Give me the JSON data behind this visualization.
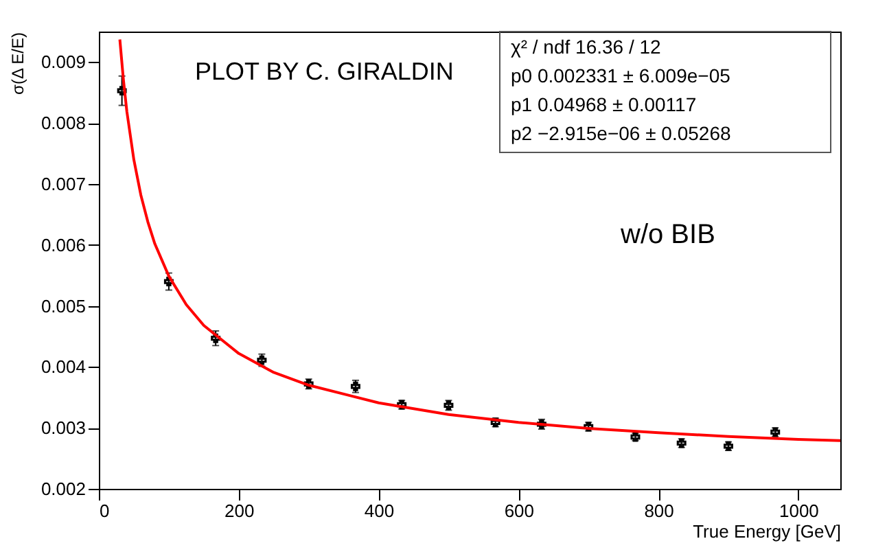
{
  "chart_data": {
    "type": "scatter",
    "xlabel": "True Energy [GeV]",
    "ylabel": "σ(Δ E/E)",
    "xlim": [
      0,
      1060
    ],
    "xticks": [
      0,
      200,
      400,
      600,
      800,
      1000
    ],
    "ylim": [
      0.002,
      0.0095
    ],
    "yticks": [
      0.002,
      0.003,
      0.004,
      0.005,
      0.006,
      0.007,
      0.008,
      0.009
    ],
    "grid": false,
    "series": [
      {
        "color": "#000000",
        "marker": "cross",
        "x": [
          33,
          100,
          167,
          233,
          300,
          367,
          433,
          500,
          567,
          633,
          700,
          767,
          833,
          900,
          967
        ],
        "values": [
          0.00853,
          0.0054,
          0.00447,
          0.00411,
          0.00372,
          0.00368,
          0.00338,
          0.00337,
          0.00309,
          0.00306,
          0.00302,
          0.00285,
          0.00275,
          0.0027,
          0.00293
        ],
        "errors": [
          0.00024,
          0.00014,
          0.00012,
          0.0001,
          8e-05,
          0.0001,
          7e-05,
          8e-05,
          7e-05,
          8e-05,
          7e-05,
          6e-05,
          7e-05,
          7e-05,
          7e-05
        ]
      },
      {
        "type": "line",
        "color": "#ff0000",
        "x": [
          30,
          35,
          40,
          50,
          60,
          70,
          80,
          100,
          125,
          150,
          200,
          250,
          300,
          400,
          500,
          600,
          700,
          800,
          900,
          1000,
          1060
        ],
        "values": [
          0.00937,
          0.00872,
          0.00819,
          0.0074,
          0.00682,
          0.00638,
          0.00602,
          0.00549,
          0.00502,
          0.00468,
          0.00422,
          0.00391,
          0.0037,
          0.00341,
          0.00322,
          0.00309,
          0.00299,
          0.00292,
          0.00286,
          0.00281,
          0.00279
        ]
      }
    ],
    "annotations": [
      "PLOT BY C. GIRALDIN",
      "w/o BIB",
      "χ² / ndf          16.36 / 12",
      "p0      0.002331 ± 6.009e−05",
      "p1        0.04968 ± 0.00117",
      "p2     −2.915e−06 ± 0.05268"
    ]
  }
}
